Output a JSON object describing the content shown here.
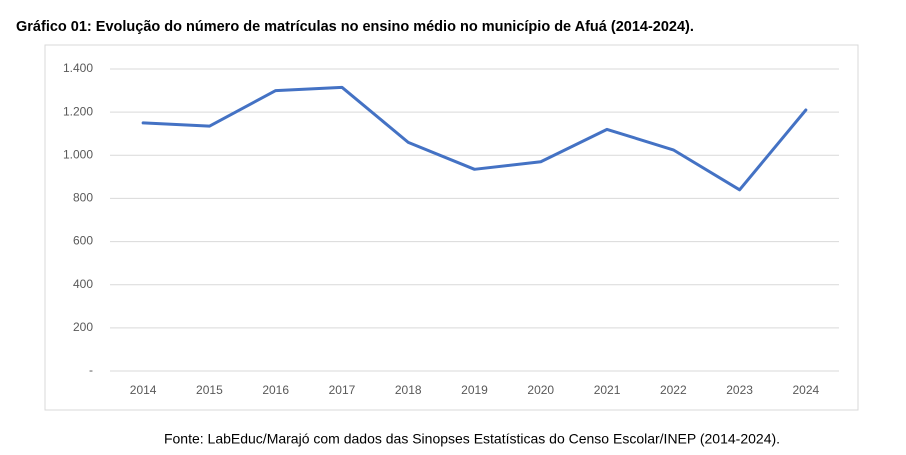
{
  "chart_data": {
    "type": "line",
    "title": "Gráfico 01: Evolução do número de matrículas no ensino médio no município de Afuá (2014-2024).",
    "source": "Fonte: LabEduc/Marajó com dados das Sinopses Estatísticas do Censo Escolar/INEP (2014-2024).",
    "categories": [
      "2014",
      "2015",
      "2016",
      "2017",
      "2018",
      "2019",
      "2020",
      "2021",
      "2022",
      "2023",
      "2024"
    ],
    "series": [
      {
        "name": "Matrículas",
        "color": "#4472c4",
        "values": [
          1150,
          1135,
          1300,
          1315,
          1060,
          935,
          970,
          1120,
          1025,
          840,
          1210
        ]
      }
    ],
    "ylim": [
      0,
      1400
    ],
    "yticks": [
      {
        "value": 0,
        "label": "-"
      },
      200,
      400,
      600,
      800,
      {
        "value": 1000,
        "label": "1.000"
      },
      {
        "value": 1200,
        "label": "1.200"
      },
      {
        "value": 1400,
        "label": "1.400"
      }
    ],
    "grid": true,
    "legend": false
  }
}
